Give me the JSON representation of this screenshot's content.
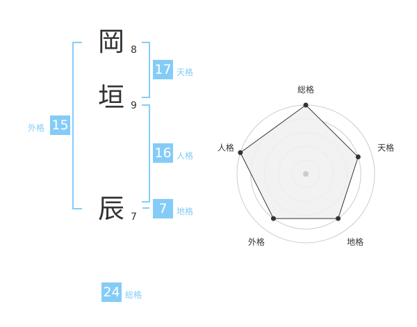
{
  "name": {
    "chars": [
      {
        "char": "岡",
        "strokes": "8"
      },
      {
        "char": "垣",
        "strokes": "9"
      },
      {
        "char": "辰",
        "strokes": "7"
      }
    ]
  },
  "fortunes": {
    "tenkaku": {
      "label": "天格",
      "value": "17"
    },
    "jinkaku": {
      "label": "人格",
      "value": "16"
    },
    "chikaku": {
      "label": "地格",
      "value": "7"
    },
    "gaikaku": {
      "label": "外格",
      "value": "15"
    },
    "soukaku": {
      "label": "総格",
      "value": "24"
    }
  },
  "colors": {
    "accent": "#84ccf7",
    "fill": "#f0f0f0",
    "ring": "#cccccc"
  },
  "chart_data": {
    "type": "radar",
    "categories": [
      "総格",
      "天格",
      "地格",
      "外格",
      "人格"
    ],
    "values": [
      5,
      4,
      4,
      4,
      5
    ],
    "rlim": [
      0,
      5
    ],
    "grid": true
  }
}
